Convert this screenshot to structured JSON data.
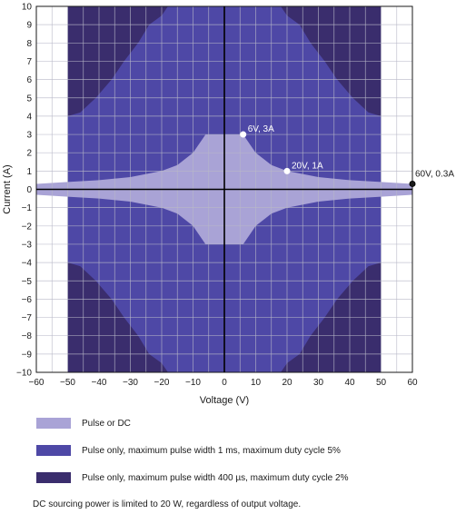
{
  "chart_data": {
    "type": "area",
    "xlabel": "Voltage (V)",
    "ylabel": "Current (A)",
    "xlim": [
      -60,
      60
    ],
    "ylim": [
      -10,
      10
    ],
    "x_ticks": [
      -60,
      -50,
      -40,
      -30,
      -20,
      -10,
      0,
      10,
      20,
      30,
      40,
      50,
      60
    ],
    "y_ticks": [
      -10,
      -9,
      -8,
      -7,
      -6,
      -5,
      -4,
      -3,
      -2,
      -1,
      0,
      1,
      2,
      3,
      4,
      5,
      6,
      7,
      8,
      9,
      10
    ],
    "grid": true,
    "series": [
      {
        "name": "Pulse only, maximum pulse width 400 µs, maximum duty cycle 2%",
        "color": "#3a2d6d",
        "region": {
          "x_abs_max": 50,
          "y_abs_max": 10
        }
      },
      {
        "name": "Pulse only, maximum pulse width 1 ms, maximum duty cycle 5%",
        "color": "#4e48a6",
        "boundary_quadrant": [
          [
            0,
            10
          ],
          [
            18,
            10
          ],
          [
            20,
            9.5
          ],
          [
            24,
            9
          ],
          [
            27.5,
            8
          ],
          [
            32,
            7
          ],
          [
            36,
            6
          ],
          [
            41,
            5
          ],
          [
            46,
            4.2
          ],
          [
            50,
            4
          ]
        ]
      },
      {
        "name": "Pulse or DC",
        "color": "#a9a3d6",
        "boundary_quadrant": [
          [
            0,
            3
          ],
          [
            6,
            3
          ],
          [
            10,
            2
          ],
          [
            15,
            1.33
          ],
          [
            20,
            1
          ],
          [
            30,
            0.67
          ],
          [
            40,
            0.5
          ],
          [
            50,
            0.4
          ],
          [
            60,
            0.3
          ]
        ]
      }
    ],
    "points": [
      {
        "label": "6V, 3A",
        "x": 6,
        "y": 3,
        "color": "#ffffff"
      },
      {
        "label": "20V, 1A",
        "x": 20,
        "y": 1,
        "color": "#ffffff"
      },
      {
        "label": "60V, 0.3A",
        "x": 60,
        "y": 0.3,
        "color": "#1a1a1a"
      }
    ]
  },
  "legend": [
    {
      "label": "Pulse or DC",
      "color": "#a9a3d6"
    },
    {
      "label": "Pulse only, maximum pulse width 1 ms, maximum duty cycle 5%",
      "color": "#4e48a6"
    },
    {
      "label": "Pulse only, maximum pulse width 400 µs, maximum duty cycle 2%",
      "color": "#3a2d6d"
    }
  ],
  "note": "DC sourcing power is limited to 20 W, regardless of output voltage."
}
